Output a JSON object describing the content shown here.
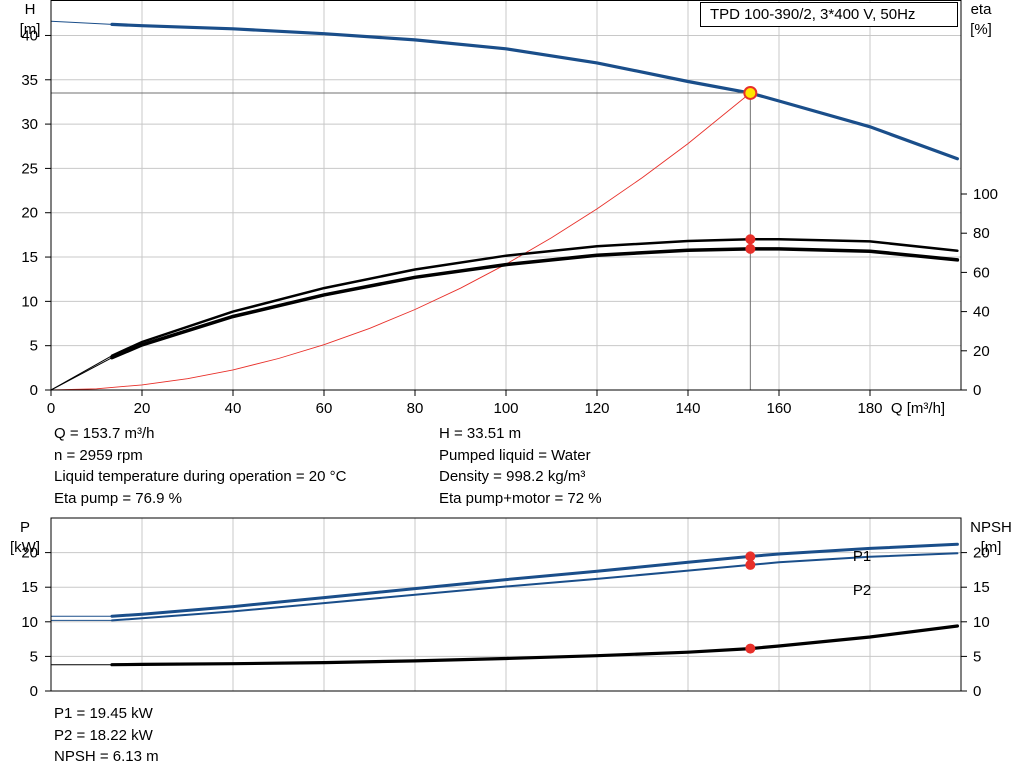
{
  "colors": {
    "head_curve": "#1a4e8a",
    "eta_curve": "#000000",
    "system_curve": "#e8302a",
    "duty_point": "#e8302a",
    "duty_marker_fill": "#ffe600",
    "grid": "#c8c8c8"
  },
  "pump_label": "TPD 100-390/2, 3*400 V, 50Hz",
  "chart_data": [
    {
      "type": "line",
      "name": "pump-performance",
      "x_label": "Q [m³/h]",
      "y_left_label": [
        "H",
        "[m]"
      ],
      "y_right_label": [
        "eta",
        "[%]"
      ],
      "xlim": [
        0,
        200
      ],
      "ylim_left": [
        0,
        44
      ],
      "ylim_right": [
        0,
        100
      ],
      "x_ticks": [
        0,
        20,
        40,
        60,
        80,
        100,
        120,
        140,
        160,
        180
      ],
      "y_left_ticks": [
        0,
        5,
        10,
        15,
        20,
        25,
        30,
        35,
        40
      ],
      "y_right_ticks": [
        0,
        20,
        40,
        60,
        80,
        100
      ],
      "grid": true,
      "series": [
        {
          "id": "head",
          "axis": "left",
          "x": [
            0,
            13.4,
            20,
            40,
            60,
            80,
            100,
            120,
            140,
            153.7,
            160,
            180,
            199.2
          ],
          "y": [
            41.6,
            41.25,
            41.1,
            40.75,
            40.2,
            39.5,
            38.5,
            36.9,
            34.8,
            33.51,
            32.6,
            29.7,
            26.1
          ],
          "thin_until": 13.4
        },
        {
          "id": "eta-pump",
          "axis": "right",
          "x": [
            0,
            13.4,
            20,
            40,
            60,
            80,
            100,
            120,
            140,
            153.7,
            160,
            180,
            199.2
          ],
          "y": [
            0,
            17.5,
            24.5,
            40,
            52,
            61.5,
            68.5,
            73.3,
            76.0,
            76.9,
            76.9,
            75.8,
            71.0
          ],
          "thin_until": 13.4
        },
        {
          "id": "eta-pump-motor",
          "axis": "right",
          "x": [
            0,
            13.4,
            20,
            40,
            60,
            80,
            100,
            120,
            140,
            153.7,
            160,
            180,
            199.2
          ],
          "y": [
            0,
            16.5,
            23,
            37.5,
            48.5,
            57.5,
            64,
            68.8,
            71.3,
            72.0,
            72.0,
            70.8,
            66.4
          ],
          "thin_until": 13.4
        },
        {
          "id": "system-curve",
          "axis": "left",
          "x": [
            0,
            10,
            20,
            30,
            40,
            50,
            60,
            70,
            80,
            90,
            100,
            110,
            120,
            130,
            140,
            153.7
          ],
          "y": [
            0,
            0.14,
            0.57,
            1.28,
            2.27,
            3.55,
            5.11,
            6.95,
            9.08,
            11.49,
            14.19,
            17.17,
            20.43,
            23.97,
            27.8,
            33.51
          ]
        }
      ],
      "duty_point": {
        "q": 153.7,
        "h": 33.51,
        "eta_pump": 76.9,
        "eta_pump_motor": 72.0
      }
    },
    {
      "type": "line",
      "name": "power-npsh",
      "y_left_label": [
        "P",
        "[kW]"
      ],
      "y_right_label": [
        "NPSH",
        "[m]"
      ],
      "xlim": [
        0,
        200
      ],
      "ylim": [
        0,
        25
      ],
      "y_left_ticks": [
        0,
        5,
        10,
        15,
        20
      ],
      "y_right_ticks": [
        0,
        5,
        10,
        15,
        20
      ],
      "grid": true,
      "series": [
        {
          "id": "P1",
          "name": "P1",
          "axis": "left",
          "x": [
            0,
            13.4,
            20,
            40,
            60,
            80,
            100,
            120,
            140,
            153.7,
            160,
            180,
            199.2
          ],
          "y": [
            10.8,
            10.8,
            11.1,
            12.2,
            13.5,
            14.8,
            16.1,
            17.3,
            18.6,
            19.45,
            19.8,
            20.6,
            21.2
          ],
          "thin_until": 13.4
        },
        {
          "id": "P2",
          "name": "P2",
          "axis": "left",
          "x": [
            0,
            13.4,
            20,
            40,
            60,
            80,
            100,
            120,
            140,
            153.7,
            160,
            180,
            199.2
          ],
          "y": [
            10.2,
            10.2,
            10.5,
            11.5,
            12.7,
            13.9,
            15.1,
            16.2,
            17.4,
            18.22,
            18.6,
            19.4,
            19.9
          ],
          "thin_until": 13.4
        },
        {
          "id": "NPSH",
          "axis": "right",
          "x": [
            0,
            13.4,
            20,
            40,
            60,
            80,
            100,
            120,
            140,
            153.7,
            160,
            180,
            199.2
          ],
          "y": [
            3.8,
            3.8,
            3.85,
            3.95,
            4.1,
            4.35,
            4.7,
            5.1,
            5.6,
            6.13,
            6.5,
            7.8,
            9.4
          ],
          "thin_until": 13.4
        }
      ],
      "duty_point": {
        "q": 153.7,
        "p1": 19.45,
        "p2": 18.22,
        "npsh": 6.13
      }
    }
  ],
  "info_upper_left": [
    "Q = 153.7 m³/h",
    "n = 2959 rpm",
    "Liquid temperature during operation = 20 °C",
    "Eta pump = 76.9 %"
  ],
  "info_upper_right": [
    "H = 33.51 m",
    "Pumped liquid = Water",
    "Density = 998.2 kg/m³",
    "Eta pump+motor = 72 %"
  ],
  "info_lower": [
    "P1 = 19.45 kW",
    "P2 = 18.22 kW",
    "NPSH = 6.13 m"
  ]
}
